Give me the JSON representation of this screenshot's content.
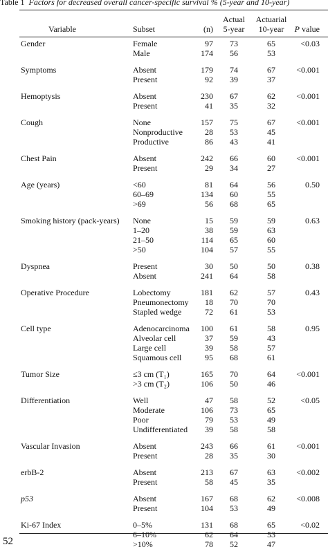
{
  "header": {
    "table_label": "Table 1",
    "title": "Factors for decreased overall cancer-specific survival % (5-year and 10-year)"
  },
  "columns": [
    "Variable",
    "Subset",
    "(n)",
    [
      "Actual",
      "5-year"
    ],
    [
      "Actuarial",
      "10-year"
    ],
    "P value"
  ],
  "groups": [
    {
      "variable": "Gender",
      "p_value": "<0.03",
      "rows": [
        [
          "Female",
          97,
          73,
          65
        ],
        [
          "Male",
          174,
          56,
          53
        ]
      ]
    },
    {
      "variable": "Symptoms",
      "p_value": "<0.001",
      "rows": [
        [
          "Absent",
          179,
          74,
          67
        ],
        [
          "Present",
          92,
          39,
          37
        ]
      ]
    },
    {
      "variable": "Hemoptysis",
      "p_value": "<0.001",
      "rows": [
        [
          "Absent",
          230,
          67,
          62
        ],
        [
          "Present",
          41,
          35,
          32
        ]
      ]
    },
    {
      "variable": "Cough",
      "p_value": "<0.001",
      "rows": [
        [
          "None",
          157,
          75,
          67
        ],
        [
          "Nonproductive",
          28,
          53,
          45
        ],
        [
          "Productive",
          86,
          43,
          41
        ]
      ]
    },
    {
      "variable": "Chest Pain",
      "p_value": "<0.001",
      "rows": [
        [
          "Absent",
          242,
          66,
          60
        ],
        [
          "Present",
          29,
          34,
          27
        ]
      ]
    },
    {
      "variable": "Age (years)",
      "p_value": "0.50",
      "rows": [
        [
          "<60",
          81,
          64,
          56
        ],
        [
          "60–69",
          134,
          60,
          55
        ],
        [
          ">69",
          56,
          68,
          65
        ]
      ]
    },
    {
      "variable": "Smoking history (pack-years)",
      "p_value": "0.63",
      "rows": [
        [
          "None",
          15,
          59,
          59
        ],
        [
          "1–20",
          38,
          59,
          63
        ],
        [
          "21–50",
          114,
          65,
          60
        ],
        [
          ">50",
          104,
          57,
          55
        ]
      ]
    },
    {
      "variable": "Dyspnea",
      "p_value": "0.38",
      "rows": [
        [
          "Present",
          30,
          50,
          50
        ],
        [
          "Absent",
          241,
          64,
          58
        ]
      ]
    },
    {
      "variable": "Operative Procedure",
      "p_value": "0.43",
      "rows": [
        [
          "Lobectomy",
          181,
          62,
          57
        ],
        [
          "Pneumonectomy",
          18,
          70,
          70
        ],
        [
          "Stapled wedge",
          72,
          61,
          53
        ]
      ]
    },
    {
      "variable": "Cell type",
      "p_value": "0.95",
      "rows": [
        [
          "Adenocarcinoma",
          100,
          61,
          58
        ],
        [
          "Alveolar cell",
          37,
          59,
          43
        ],
        [
          "Large cell",
          39,
          58,
          57
        ],
        [
          "Squamous cell",
          95,
          68,
          61
        ]
      ]
    },
    {
      "variable": "Tumor Size",
      "p_value": "<0.001",
      "rows": [
        [
          "≤3 cm (T₁)",
          165,
          70,
          64
        ],
        [
          ">3 cm (T₂)",
          106,
          50,
          46
        ]
      ]
    },
    {
      "variable": "Differentiation",
      "p_value": "<0.05",
      "rows": [
        [
          "Well",
          47,
          58,
          52
        ],
        [
          "Moderate",
          106,
          73,
          65
        ],
        [
          "Poor",
          79,
          53,
          49
        ],
        [
          "Undifferentiated",
          39,
          58,
          58
        ]
      ]
    },
    {
      "variable": "Vascular Invasion",
      "p_value": "<0.001",
      "rows": [
        [
          "Absent",
          243,
          66,
          61
        ],
        [
          "Present",
          28,
          35,
          30
        ]
      ]
    },
    {
      "variable": "erbB-2",
      "p_value": "<0.002",
      "rows": [
        [
          "Absent",
          213,
          67,
          63
        ],
        [
          "Present",
          58,
          45,
          35
        ]
      ]
    },
    {
      "variable": "p53",
      "p_value": "<0.008",
      "rows": [
        [
          "Absent",
          167,
          68,
          62
        ],
        [
          "Present",
          104,
          53,
          49
        ]
      ]
    },
    {
      "variable": "Ki-67 Index",
      "p_value": "<0.02",
      "rows": [
        [
          "0–5%",
          131,
          68,
          65
        ],
        [
          "6–10%",
          62,
          64,
          53
        ],
        [
          ">10%",
          78,
          52,
          47
        ]
      ]
    }
  ],
  "page_number": "52"
}
